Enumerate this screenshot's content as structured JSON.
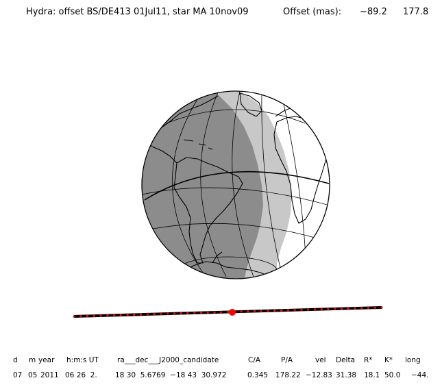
{
  "header": {
    "title": "Hydra: offset BS/DE413 01Jul11, star MA 10nov09",
    "offset_label": "Offset (mas):",
    "offset_x": "−89.2",
    "offset_y": "177.8"
  },
  "map": {
    "projection": "orthographic",
    "shadow_color": "#8c8c8c",
    "penumbra_color": "#c8c8c8",
    "lit_color": "#ffffff",
    "outline_color": "#000000"
  },
  "track": {
    "line_color": "#000000",
    "marker_color": "#ff0000",
    "highlight_color": "#ff0000"
  },
  "table": {
    "headers": [
      "d",
      "m",
      "year",
      "h:m:s UT",
      "ra___dec___J2000_candidate",
      "C/A",
      "P/A",
      "vel",
      "Delta",
      "R*",
      "K*",
      "long"
    ],
    "values": [
      "07",
      "05",
      "2011",
      "06 26  2.",
      "18 30  5.6769  −18 43  30.972",
      "0.345",
      "178.22",
      "−12.83",
      "31.38",
      "18.1",
      "50.0",
      "−44."
    ]
  }
}
